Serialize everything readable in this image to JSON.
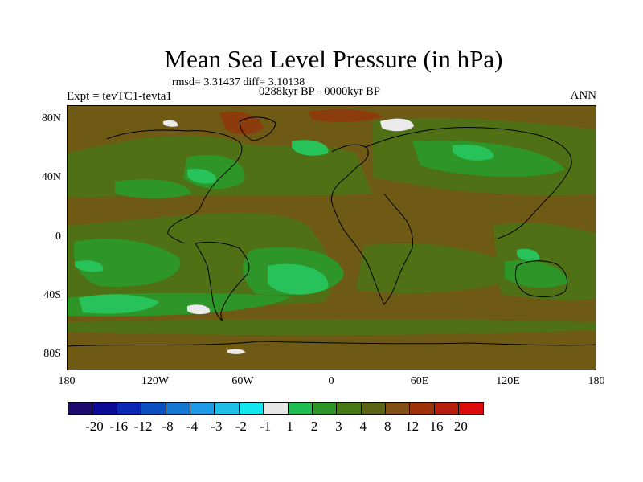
{
  "header": {
    "title": "Mean Sea Level Pressure (in hPa)",
    "stats": "rmsd= 3.31437  diff= 3.10138",
    "period": "0288kyr BP - 0000kyr BP",
    "experiment": "Expt = tevTC1-tevta1",
    "season": "ANN"
  },
  "axes": {
    "lat_labels": [
      "80N",
      "40N",
      "0",
      "40S",
      "80S"
    ],
    "lon_labels": [
      "180",
      "120W",
      "60W",
      "0",
      "60E",
      "120E",
      "180"
    ]
  },
  "colorbar": {
    "colors": [
      "#1e0a6e",
      "#0a0a96",
      "#0a28b4",
      "#0a50be",
      "#1478d2",
      "#1e9be6",
      "#1ebee6",
      "#14e6f0",
      "#e6e6e6",
      "#1ebe50",
      "#2d9628",
      "#467814",
      "#5a6414",
      "#825014",
      "#a0320a",
      "#b41e0a",
      "#dc0a0a"
    ],
    "labels": [
      "-20",
      "-16",
      "-12",
      "-8",
      "-4",
      "-3",
      "-2",
      "-1",
      "1",
      "2",
      "3",
      "4",
      "8",
      "12",
      "16",
      "20"
    ]
  },
  "palette": {
    "brown": "#6e5a14",
    "olive": "#4f7014",
    "green": "#2e9628",
    "bright": "#28c25a",
    "white": "#eaeaea",
    "red": "#8c3c0c"
  }
}
